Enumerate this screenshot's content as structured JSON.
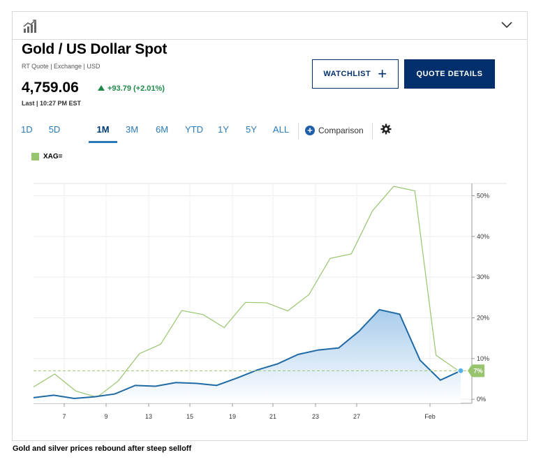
{
  "header": {
    "chart_icon": "chart-trend-icon",
    "expand_icon": "chevron-down-icon"
  },
  "quote": {
    "title": "Gold / US Dollar Spot",
    "subtitle": "RT Quote | Exchange | USD",
    "price": "4,759.06",
    "change": "+93.79 (+2.01%)",
    "change_color": "#1c8a4a",
    "last": "Last | 10:27 PM EST"
  },
  "buttons": {
    "watchlist": "WATCHLIST",
    "quote_details": "QUOTE DETAILS"
  },
  "ranges": [
    "1D",
    "5D",
    "1M",
    "3M",
    "6M",
    "YTD",
    "1Y",
    "5Y",
    "ALL"
  ],
  "active_range": "1M",
  "comparison_label": "Comparison",
  "settings_icon": "gear-icon",
  "legend": {
    "label": "XAG=",
    "color": "#98c46e"
  },
  "caption": "Gold and silver prices rebound after steep selloff",
  "chart_data": {
    "type": "line",
    "x_ticks": [
      "7",
      "9",
      "13",
      "15",
      "19",
      "21",
      "23",
      "27",
      "Feb"
    ],
    "y_ticks": [
      "0%",
      "10%",
      "20%",
      "30%",
      "40%",
      "50%"
    ],
    "ylim": [
      -1,
      53
    ],
    "grid": true,
    "legend_placement": "top-left",
    "series": [
      {
        "name": "XAG=",
        "color": "#98c46e",
        "values": [
          3,
          6.2,
          2,
          0.5,
          4.5,
          11.2,
          13.5,
          21.8,
          20.8,
          17.6,
          23.8,
          23.7,
          21.7,
          25.7,
          34.6,
          35.7,
          46.3,
          52.3,
          51.2,
          10.8,
          7.2
        ]
      },
      {
        "name": "",
        "color": "#1f6aa5",
        "fill": "#bcd8f0",
        "values": [
          0.4,
          1.0,
          0.2,
          0.6,
          1.3,
          3.4,
          3.2,
          4.1,
          3.9,
          3.4,
          5.2,
          7.2,
          8.7,
          11.0,
          12.1,
          12.6,
          16.7,
          22.0,
          20.9,
          9.6,
          4.7,
          7.0
        ]
      }
    ],
    "reference_line": {
      "value": 7,
      "label": "7%",
      "color": "#98c46e"
    }
  }
}
